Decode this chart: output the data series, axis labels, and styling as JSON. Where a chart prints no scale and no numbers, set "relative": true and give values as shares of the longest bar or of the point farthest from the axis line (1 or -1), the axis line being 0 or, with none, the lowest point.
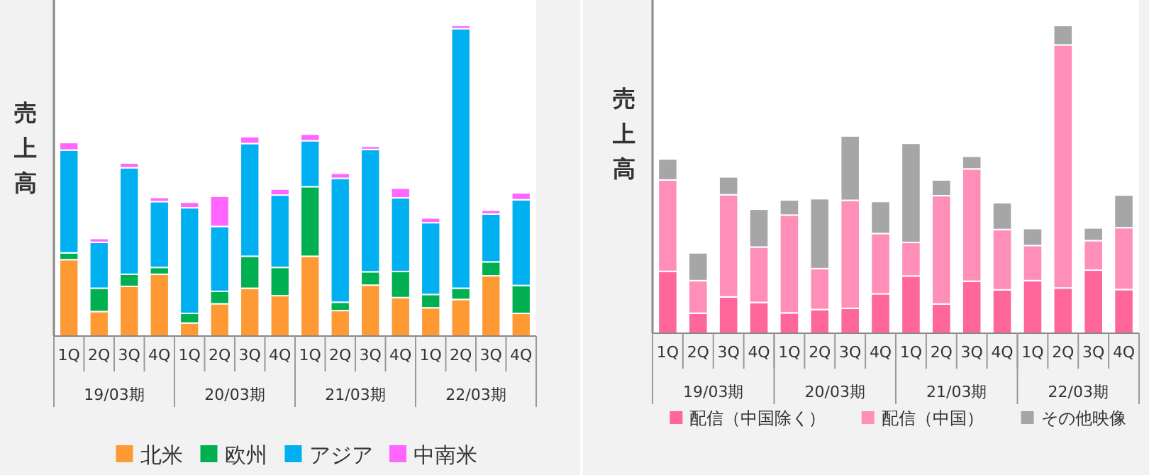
{
  "chart_data": [
    {
      "type": "bar",
      "stacked": true,
      "relative": true,
      "legend": "bottom",
      "ylabel": "売上高",
      "categories": [
        "1Q",
        "2Q",
        "3Q",
        "4Q",
        "1Q",
        "2Q",
        "3Q",
        "4Q",
        "1Q",
        "2Q",
        "3Q",
        "4Q",
        "1Q",
        "2Q",
        "3Q",
        "4Q"
      ],
      "annotations": [
        "19/03期",
        "20/03期",
        "21/03期",
        "22/03期"
      ],
      "series": [
        {
          "name": "北米",
          "color": "#ff9933",
          "values": [
            0.246,
            0.079,
            0.16,
            0.199,
            0.042,
            0.104,
            0.154,
            0.13,
            0.257,
            0.082,
            0.164,
            0.124,
            0.091,
            0.118,
            0.194,
            0.073
          ]
        },
        {
          "name": "欧州",
          "color": "#00b050",
          "values": [
            0.022,
            0.075,
            0.039,
            0.022,
            0.031,
            0.04,
            0.103,
            0.091,
            0.224,
            0.027,
            0.043,
            0.084,
            0.043,
            0.036,
            0.045,
            0.09
          ]
        },
        {
          "name": "アジア",
          "color": "#00b0f0",
          "values": [
            0.331,
            0.148,
            0.343,
            0.212,
            0.34,
            0.209,
            0.363,
            0.233,
            0.148,
            0.399,
            0.394,
            0.237,
            0.231,
            0.836,
            0.154,
            0.276
          ]
        },
        {
          "name": "中南米",
          "color": "#ff66ff",
          "values": [
            0.024,
            0.012,
            0.015,
            0.013,
            0.018,
            0.097,
            0.022,
            0.019,
            0.021,
            0.016,
            0.01,
            0.031,
            0.015,
            0.01,
            0.012,
            0.022
          ]
        }
      ]
    },
    {
      "type": "bar",
      "stacked": true,
      "relative": true,
      "legend": "bottom",
      "ylabel": "売上高",
      "categories": [
        "1Q",
        "2Q",
        "3Q",
        "4Q",
        "1Q",
        "2Q",
        "3Q",
        "4Q",
        "1Q",
        "2Q",
        "3Q",
        "4Q",
        "1Q",
        "2Q",
        "3Q",
        "4Q"
      ],
      "annotations": [
        "19/03期",
        "20/03期",
        "21/03期",
        "22/03期"
      ],
      "series": [
        {
          "name": "配信（中国除く）",
          "color": "#ff6699",
          "values": [
            0.201,
            0.065,
            0.118,
            0.1,
            0.066,
            0.077,
            0.081,
            0.128,
            0.186,
            0.095,
            0.169,
            0.141,
            0.171,
            0.147,
            0.205,
            0.142
          ]
        },
        {
          "name": "配信（中国）",
          "color": "#ff8fb8",
          "values": [
            0.297,
            0.106,
            0.332,
            0.18,
            0.318,
            0.133,
            0.351,
            0.196,
            0.109,
            0.352,
            0.365,
            0.196,
            0.114,
            0.79,
            0.096,
            0.201
          ]
        },
        {
          "name": "その他映像",
          "color": "#a6a6a6",
          "values": [
            0.068,
            0.09,
            0.058,
            0.123,
            0.049,
            0.227,
            0.209,
            0.104,
            0.322,
            0.051,
            0.041,
            0.087,
            0.055,
            0.063,
            0.041,
            0.106
          ]
        }
      ]
    }
  ]
}
